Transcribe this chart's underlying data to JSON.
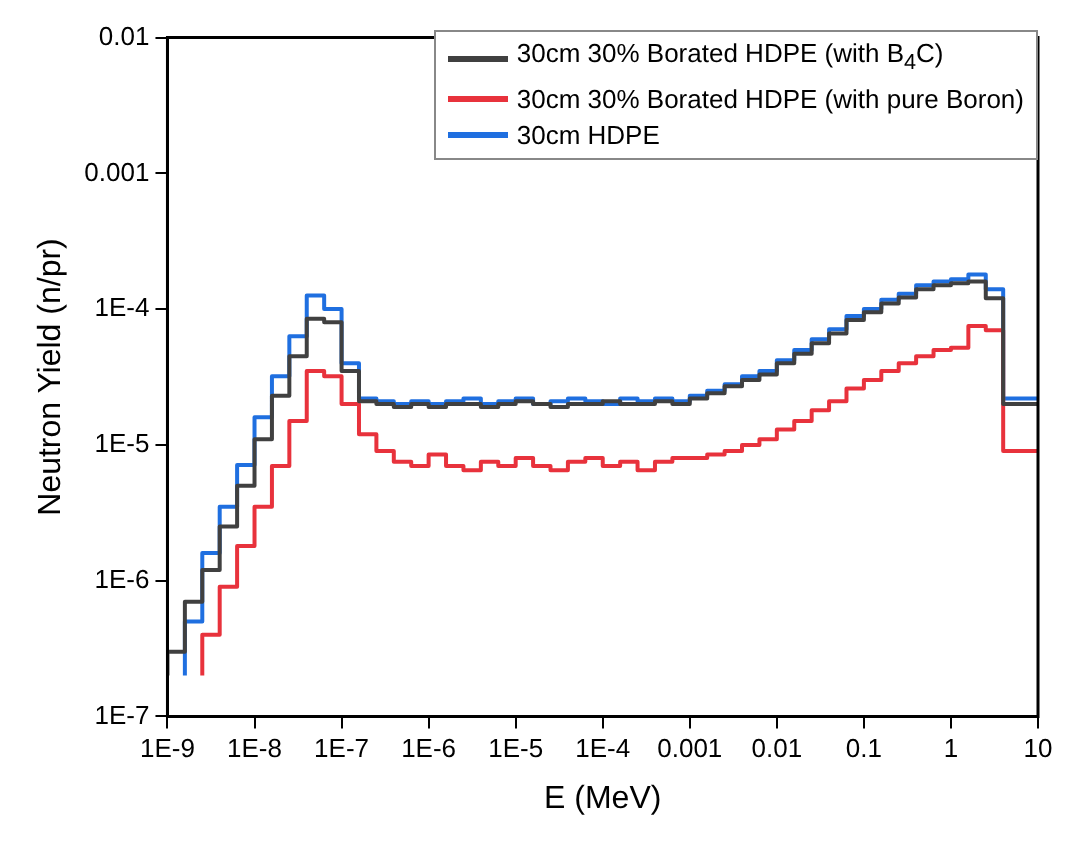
{
  "chart_data": {
    "type": "step",
    "xlabel": "E (MeV)",
    "ylabel": "Neutron Yield (n/pr)",
    "log": "xy",
    "grid": false,
    "legend": "top right",
    "marker": "none",
    "line_style": "solid",
    "x": [
      1e-09,
      1.585e-09,
      2.512e-09,
      3.981e-09,
      6.31e-09,
      1e-08,
      1.585e-08,
      2.512e-08,
      3.981e-08,
      6.31e-08,
      1e-07,
      1.585e-07,
      2.512e-07,
      3.981e-07,
      6.31e-07,
      1e-06,
      1.585e-06,
      2.512e-06,
      3.981e-06,
      6.31e-06,
      1e-05,
      1.585e-05,
      2.512e-05,
      3.981e-05,
      6.31e-05,
      0.0001,
      0.0001585,
      0.0002512,
      0.0003981,
      0.000631,
      0.001,
      0.001585,
      0.002512,
      0.003981,
      0.00631,
      0.01,
      0.01585,
      0.02512,
      0.03981,
      0.0631,
      0.1,
      0.1585,
      0.2512,
      0.3981,
      0.631,
      1,
      1.585,
      2.512,
      3.981,
      6.31,
      10
    ],
    "series": [
      {
        "name": "30cm 30% Borated HDPE (with B$_{4}$C)",
        "color": "#404040",
        "values": [
          2e-07,
          3e-07,
          7e-07,
          1.2e-06,
          2.5e-06,
          5e-06,
          1.1e-05,
          2.3e-05,
          4.5e-05,
          8.5e-05,
          8e-05,
          3.5e-05,
          2.1e-05,
          2e-05,
          1.9e-05,
          2e-05,
          1.9e-05,
          2e-05,
          2e-05,
          1.9e-05,
          2e-05,
          2.1e-05,
          2e-05,
          1.9e-05,
          2e-05,
          2e-05,
          2.1e-05,
          2e-05,
          2e-05,
          2.1e-05,
          2e-05,
          2.2e-05,
          2.4e-05,
          2.7e-05,
          3e-05,
          3.3e-05,
          4e-05,
          4.7e-05,
          5.6e-05,
          6.6e-05,
          8.3e-05,
          9.5e-05,
          0.00011,
          0.000122,
          0.00014,
          0.00015,
          0.000155,
          0.00016,
          0.00012,
          2e-05,
          2e-05
        ]
      },
      {
        "name": "30cm 30% Borated HDPE (with pure Boron)",
        "color": "#e8323c",
        "values": [
          null,
          null,
          2e-07,
          4e-07,
          9e-07,
          1.8e-06,
          3.5e-06,
          7e-06,
          1.5e-05,
          3.5e-05,
          3.2e-05,
          2e-05,
          1.2e-05,
          9e-06,
          7.5e-06,
          7e-06,
          8.5e-06,
          7e-06,
          6.5e-06,
          7.5e-06,
          7e-06,
          8e-06,
          7e-06,
          6.5e-06,
          7.5e-06,
          8e-06,
          7e-06,
          7.5e-06,
          6.5e-06,
          7.5e-06,
          8e-06,
          8e-06,
          8.5e-06,
          9e-06,
          1e-05,
          1.1e-05,
          1.3e-05,
          1.5e-05,
          1.8e-05,
          2.1e-05,
          2.6e-05,
          3e-05,
          3.5e-05,
          4e-05,
          4.5e-05,
          5e-05,
          5.2e-05,
          7.5e-05,
          7e-05,
          9e-06,
          9e-06
        ]
      },
      {
        "name": "30cm HDPE",
        "color": "#1f6fe0",
        "values": [
          null,
          2e-07,
          5e-07,
          1.6e-06,
          3.5e-06,
          7.1e-06,
          1.6e-05,
          3.2e-05,
          6.3e-05,
          0.000126,
          0.0001,
          4e-05,
          2.2e-05,
          2.1e-05,
          2e-05,
          2.1e-05,
          2e-05,
          2.1e-05,
          2.2e-05,
          2e-05,
          2.1e-05,
          2.2e-05,
          2e-05,
          2.1e-05,
          2.2e-05,
          2.1e-05,
          2e-05,
          2.2e-05,
          2.1e-05,
          2.2e-05,
          2.1e-05,
          2.3e-05,
          2.5e-05,
          2.8e-05,
          3.2e-05,
          3.5e-05,
          4.2e-05,
          5e-05,
          6e-05,
          7.1e-05,
          8.9e-05,
          0.0001,
          0.000117,
          0.00013,
          0.00015,
          0.00016,
          0.000166,
          0.00018,
          0.00014,
          2.2e-05,
          2.2e-05
        ]
      }
    ],
    "xlim": [
      1e-09,
      10
    ],
    "xticks": [
      {
        "value": 1e-09,
        "label": "1E-9"
      },
      {
        "value": 1e-08,
        "label": "1E-8"
      },
      {
        "value": 1e-07,
        "label": "1E-7"
      },
      {
        "value": 1e-06,
        "label": "1E-6"
      },
      {
        "value": 1e-05,
        "label": "1E-5"
      },
      {
        "value": 0.0001,
        "label": "1E-4"
      },
      0.001,
      0.01,
      0.1,
      1,
      10
    ],
    "ylim": [
      1e-07,
      0.01
    ],
    "yticks": [
      {
        "value": 1e-07,
        "label": "1E-7"
      },
      {
        "value": 1e-06,
        "label": "1E-6"
      },
      {
        "value": 1e-05,
        "label": "1E-5"
      },
      {
        "value": 0.0001,
        "label": "1E-4"
      },
      0.001,
      0.01
    ]
  }
}
